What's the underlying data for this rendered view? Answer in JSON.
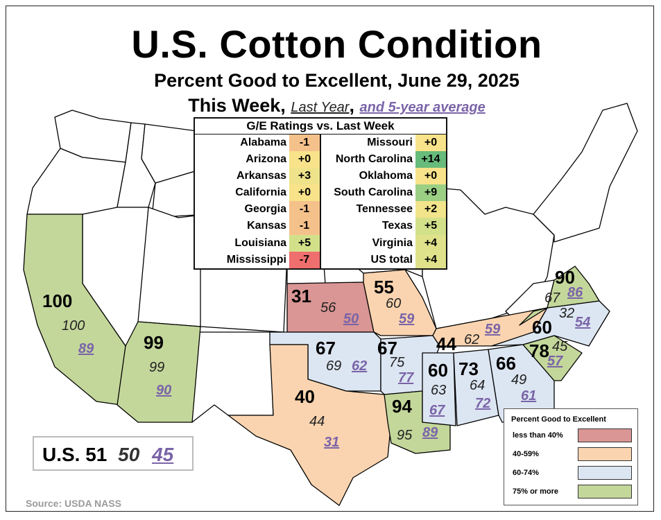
{
  "title": "U.S. Cotton Condition",
  "subtitle": "Percent Good to Excellent, June 29, 2025",
  "legend_line": {
    "this_week": "This Week,",
    "last_year": "Last Year",
    "comma": ",",
    "five_year": "and 5-year average"
  },
  "ge_table": {
    "title": "G/E Ratings vs. Last Week",
    "left": [
      {
        "state": "Alabama",
        "value": "-1",
        "color": "#f5c18b"
      },
      {
        "state": "Arizona",
        "value": "+0",
        "color": "#f8e38a"
      },
      {
        "state": "Arkansas",
        "value": "+3",
        "color": "#eee28a"
      },
      {
        "state": "California",
        "value": "+0",
        "color": "#f8e38a"
      },
      {
        "state": "Georgia",
        "value": "-1",
        "color": "#f5c18b"
      },
      {
        "state": "Kansas",
        "value": "-1",
        "color": "#f5c18b"
      },
      {
        "state": "Louisiana",
        "value": "+5",
        "color": "#d3e08a"
      },
      {
        "state": "Mississippi",
        "value": "-7",
        "color": "#ef6e6e"
      }
    ],
    "right": [
      {
        "state": "Missouri",
        "value": "+0",
        "color": "#f8e38a"
      },
      {
        "state": "North Carolina",
        "value": "+14",
        "color": "#67bb7b"
      },
      {
        "state": "Oklahoma",
        "value": "+0",
        "color": "#f8e38a"
      },
      {
        "state": "South Carolina",
        "value": "+9",
        "color": "#9bcf84"
      },
      {
        "state": "Tennessee",
        "value": "+2",
        "color": "#f1e48a"
      },
      {
        "state": "Texas",
        "value": "+5",
        "color": "#d3e08a"
      },
      {
        "state": "Virginia",
        "value": "+4",
        "color": "#dfe28a"
      },
      {
        "state": "US total",
        "value": "+4",
        "color": "#dfe28a"
      }
    ]
  },
  "states": [
    {
      "name": "California",
      "this_week": "100",
      "last_year": "100",
      "five_year": "89",
      "category": "75% or more"
    },
    {
      "name": "Arizona",
      "this_week": "99",
      "last_year": "99",
      "five_year": "90",
      "category": "75% or more"
    },
    {
      "name": "Kansas",
      "this_week": "31",
      "last_year": "56",
      "five_year": "50",
      "category": "less than 40%"
    },
    {
      "name": "Missouri",
      "this_week": "55",
      "last_year": "60",
      "five_year": "59",
      "category": "40-59%"
    },
    {
      "name": "Oklahoma",
      "this_week": "67",
      "last_year": "69",
      "five_year": "62",
      "category": "60-74%"
    },
    {
      "name": "Arkansas",
      "this_week": "67",
      "last_year": "75",
      "five_year": "77",
      "category": "60-74%"
    },
    {
      "name": "Texas",
      "this_week": "40",
      "last_year": "44",
      "five_year": "31",
      "category": "40-59%"
    },
    {
      "name": "Tennessee",
      "this_week": "44",
      "last_year": "62",
      "five_year": "59",
      "category": "40-59%"
    },
    {
      "name": "Mississippi",
      "this_week": "60",
      "last_year": "63",
      "five_year": "67",
      "category": "60-74%"
    },
    {
      "name": "Louisiana",
      "this_week": "94",
      "last_year": "95",
      "five_year": "89",
      "category": "75% or more"
    },
    {
      "name": "Alabama",
      "this_week": "73",
      "last_year": "64",
      "five_year": "72",
      "category": "60-74%"
    },
    {
      "name": "Georgia",
      "this_week": "66",
      "last_year": "49",
      "five_year": "61",
      "category": "60-74%"
    },
    {
      "name": "South Carolina",
      "this_week": "78",
      "last_year": "45",
      "five_year": "57",
      "category": "75% or more"
    },
    {
      "name": "North Carolina",
      "this_week": "60",
      "last_year": "32",
      "five_year": "54",
      "category": "60-74%"
    },
    {
      "name": "Virginia",
      "this_week": "90",
      "last_year": "67",
      "five_year": "86",
      "category": "75% or more"
    }
  ],
  "us_total": {
    "label": "U.S. 51",
    "last_year": "50",
    "five_year": "45"
  },
  "legend": {
    "title": "Percent Good to Excellent",
    "items": [
      {
        "label": "less than 40%",
        "color": "#d99694"
      },
      {
        "label": "40-59%",
        "color": "#fad4b0"
      },
      {
        "label": "60-74%",
        "color": "#dce6f2"
      },
      {
        "label": "75% or more",
        "color": "#c4d79b"
      }
    ]
  },
  "source": "Source: USDA NASS"
}
